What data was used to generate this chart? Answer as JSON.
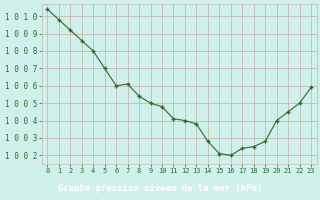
{
  "x": [
    0,
    1,
    2,
    3,
    4,
    5,
    6,
    7,
    8,
    9,
    10,
    11,
    12,
    13,
    14,
    15,
    16,
    17,
    18,
    19,
    20,
    21,
    22,
    23
  ],
  "y": [
    1010.4,
    1009.8,
    1009.2,
    1008.6,
    1008.0,
    1007.0,
    1006.0,
    1006.1,
    1005.4,
    1005.0,
    1004.8,
    1004.1,
    1004.0,
    1003.8,
    1002.8,
    1002.1,
    1002.0,
    1002.4,
    1002.5,
    1002.8,
    1004.0,
    1004.5,
    1005.0,
    1005.9
  ],
  "line_color": "#2d6a2d",
  "bg_color": "#d0f0ec",
  "grid_color": "#c8b8b8",
  "label_color": "#2d6a2d",
  "xlabel": "Graphe pression niveau de la mer (hPa)",
  "ylim": [
    1001.5,
    1010.7
  ],
  "xlim": [
    -0.5,
    23.5
  ],
  "yticks": [
    1002,
    1003,
    1004,
    1005,
    1006,
    1007,
    1008,
    1009,
    1010
  ],
  "xticks": [
    0,
    1,
    2,
    3,
    4,
    5,
    6,
    7,
    8,
    9,
    10,
    11,
    12,
    13,
    14,
    15,
    16,
    17,
    18,
    19,
    20,
    21,
    22,
    23
  ],
  "footer_bg": "#3a7a3a",
  "footer_text_color": "#ffffff"
}
